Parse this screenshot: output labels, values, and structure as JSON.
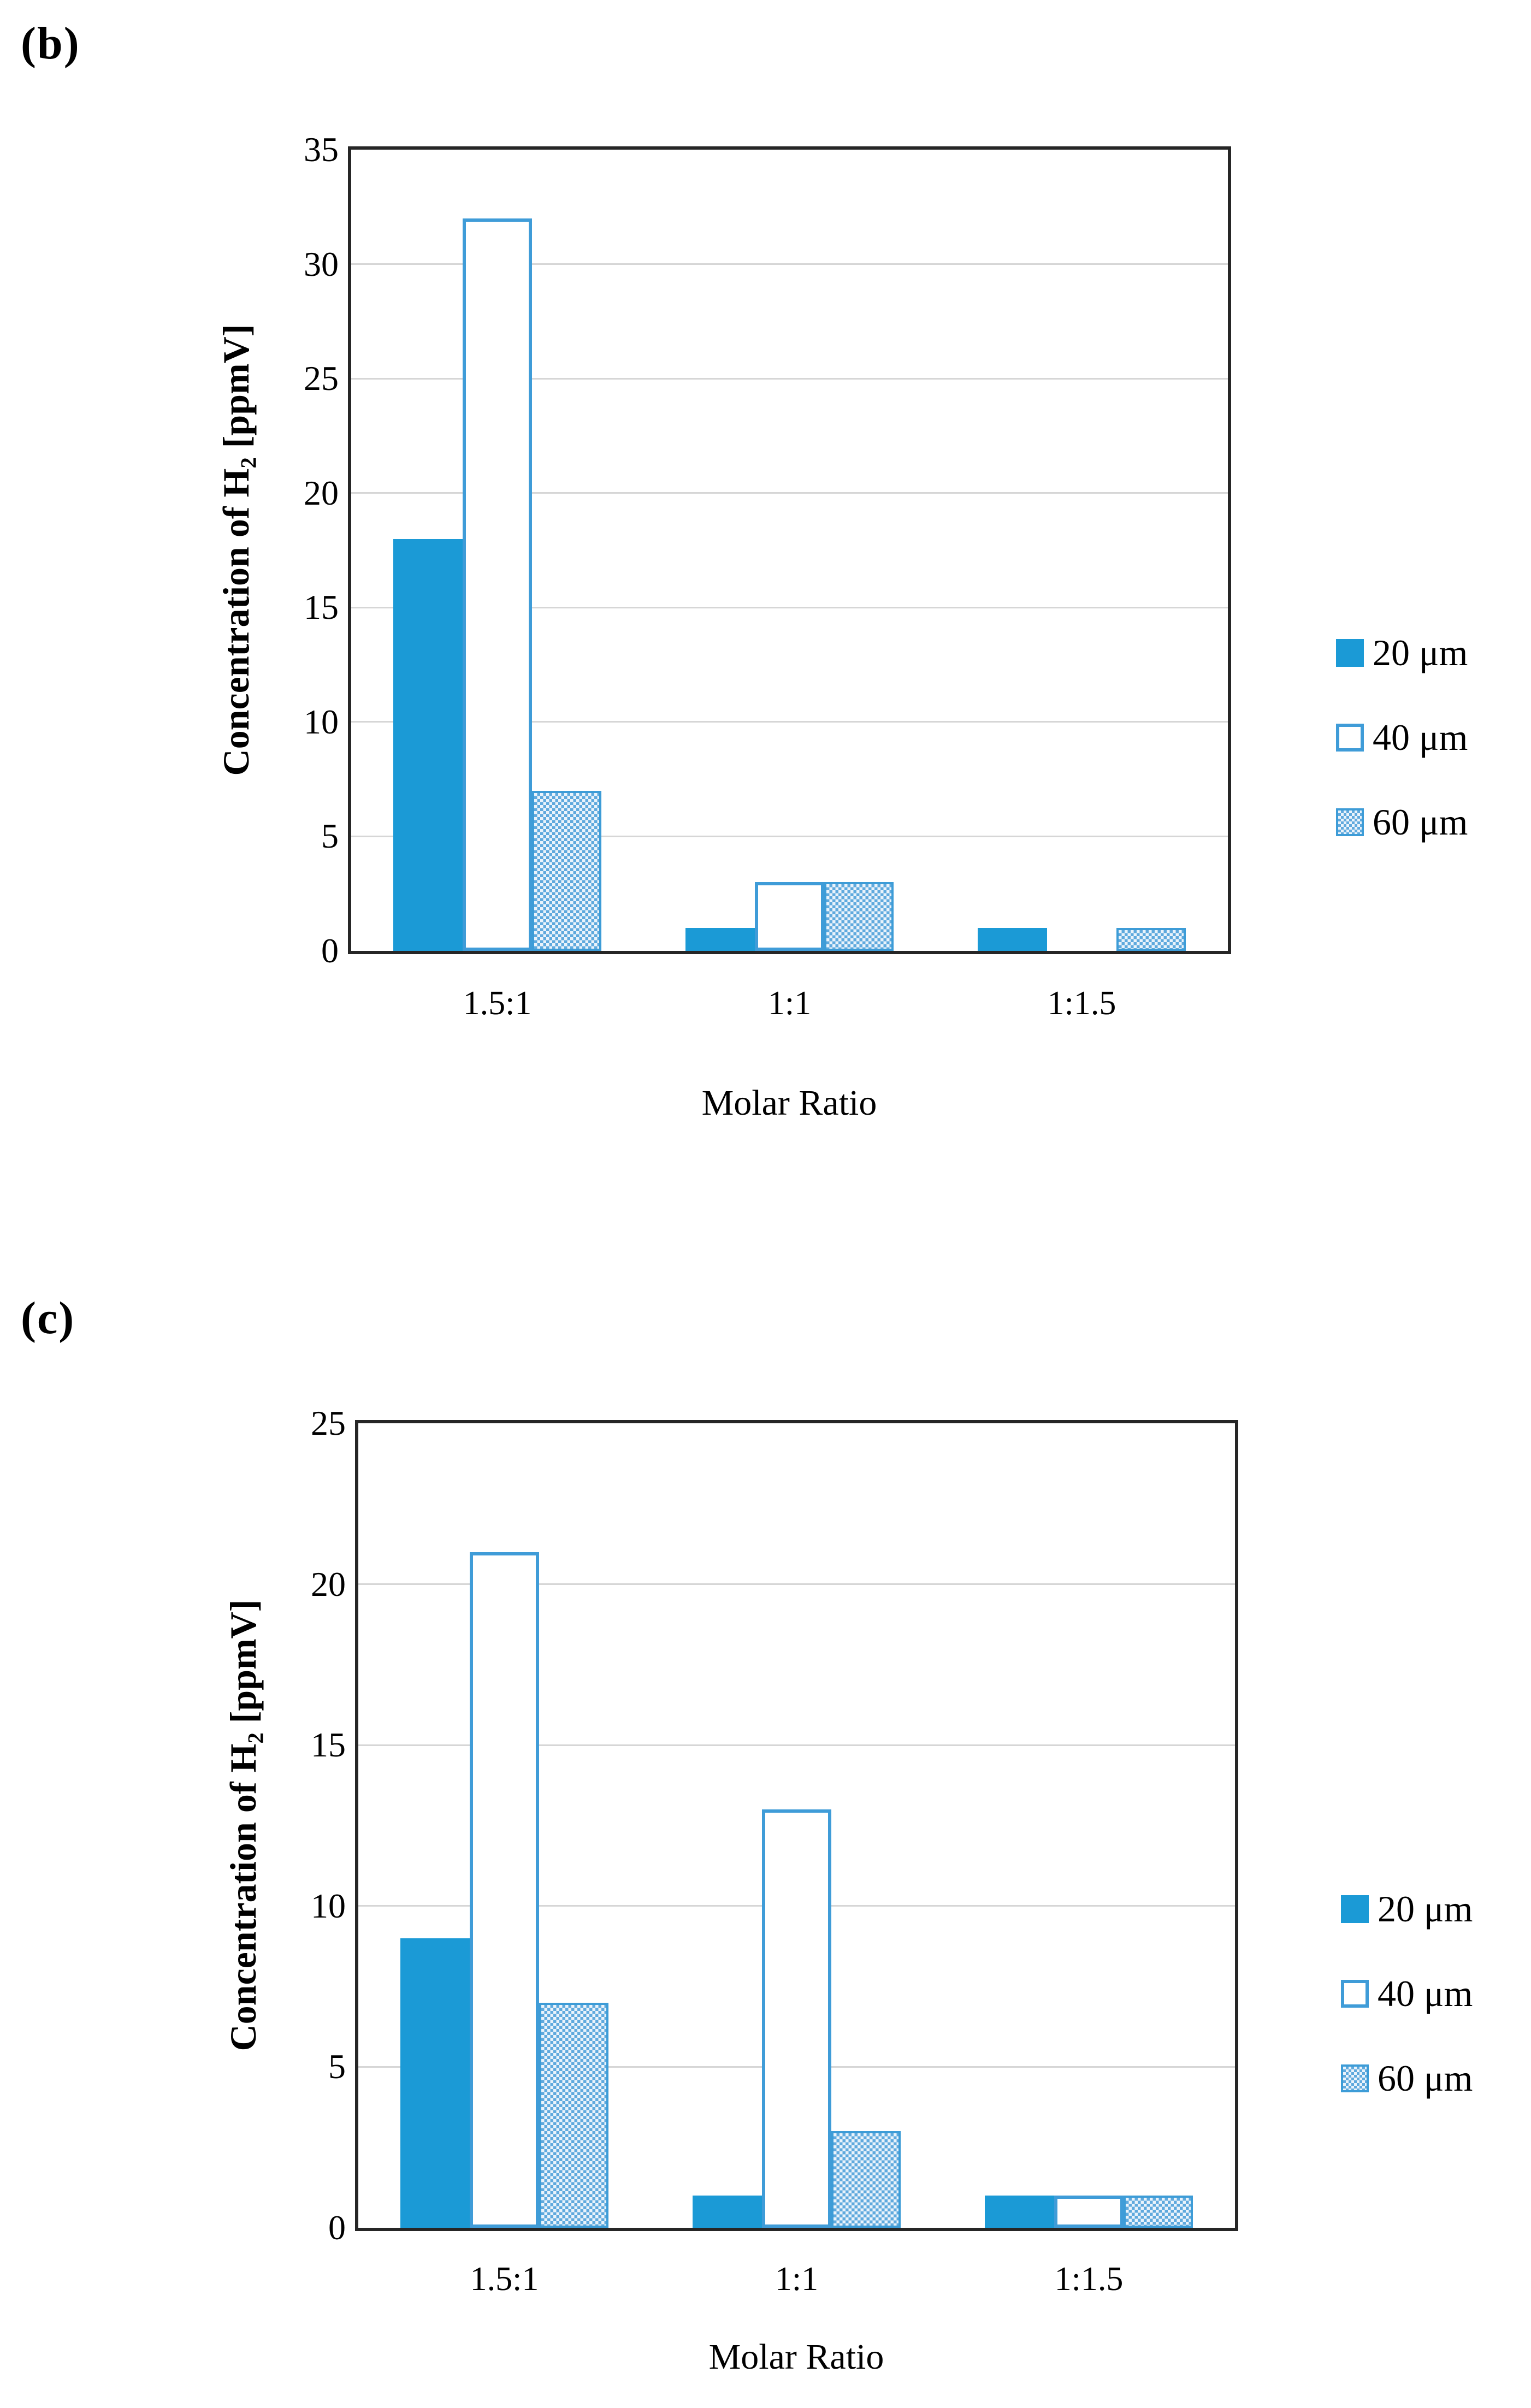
{
  "colors": {
    "solid_bar": "#1b9ad6",
    "outline_bar_border": "#3f9cd8",
    "hatch_bar_blue": "#5fa9dd",
    "hatch_bar_light": "#eaf3fb",
    "plot_frame": "#262626",
    "gridline": "#d6d6d6",
    "text": "#000000"
  },
  "chart_data": [
    {
      "type": "bar",
      "panel_label": "(b)",
      "title": "",
      "categories": [
        "1.5:1",
        "1:1",
        "1:1.5"
      ],
      "series": [
        {
          "name": "20 μm",
          "style": "solid",
          "values": [
            18,
            1,
            1
          ]
        },
        {
          "name": "40 μm",
          "style": "outline",
          "values": [
            32,
            3,
            0
          ]
        },
        {
          "name": "60 μm",
          "style": "hatch",
          "values": [
            7,
            3,
            1
          ]
        }
      ],
      "xlabel": "Molar Ratio",
      "ylabel": "Concentration of H₂ [ppmV]",
      "ylim": [
        0,
        35
      ],
      "ytick_step": 5,
      "grid": true,
      "legend_position": "right"
    },
    {
      "type": "bar",
      "panel_label": "(c)",
      "title": "",
      "categories": [
        "1.5:1",
        "1:1",
        "1:1.5"
      ],
      "series": [
        {
          "name": "20 μm",
          "style": "solid",
          "values": [
            9,
            1,
            1
          ]
        },
        {
          "name": "40 μm",
          "style": "outline",
          "values": [
            21,
            13,
            1
          ]
        },
        {
          "name": "60 μm",
          "style": "hatch",
          "values": [
            7,
            3,
            1
          ]
        }
      ],
      "xlabel": "Molar Ratio",
      "ylabel": "Concentration of H₂ [ppmV]",
      "ylim": [
        0,
        25
      ],
      "ytick_step": 5,
      "grid": true,
      "legend_position": "right"
    }
  ]
}
